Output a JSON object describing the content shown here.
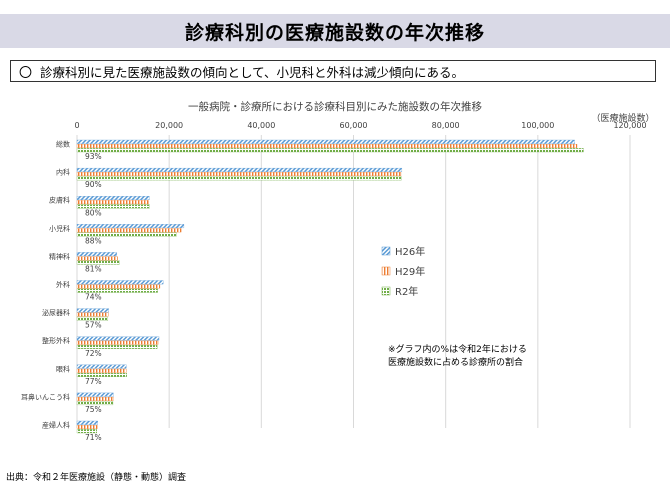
{
  "page": {
    "title": "診療科別の医療施設数の年次推移",
    "summary_bullet": "〇",
    "summary": "診療科別に見た医療施設数の傾向として、小児科と外科は減少傾向にある。",
    "source": "出典：令和２年医療施設（静態・動態）調査"
  },
  "chart_data": {
    "type": "bar",
    "orientation": "horizontal",
    "title": "一般病院・診療所における診療科目別にみた施設数の年次推移",
    "unit_label": "（医療施設数）",
    "xlim": [
      0,
      120000
    ],
    "xticks": [
      0,
      20000,
      40000,
      60000,
      80000,
      100000,
      120000
    ],
    "xtick_labels": [
      "0",
      "20,000",
      "40,000",
      "60,000",
      "80,000",
      "100,000",
      "120,000"
    ],
    "grid": "vertical",
    "legend_position": "right-middle",
    "categories": [
      "総数",
      "内科",
      "皮膚科",
      "小児科",
      "精神科",
      "外科",
      "泌尿器科",
      "整形外科",
      "眼科",
      "耳鼻いんこう科",
      "産婦人科"
    ],
    "percent_labels": [
      "93%",
      "90%",
      "80%",
      "88%",
      "81%",
      "74%",
      "57%",
      "72%",
      "77%",
      "75%",
      "71%"
    ],
    "series": [
      {
        "name": "H26年",
        "color": "#5b9bd5",
        "values": [
          108000,
          70500,
          15700,
          23200,
          8600,
          18700,
          6900,
          17800,
          10700,
          7900,
          4500
        ]
      },
      {
        "name": "H29年",
        "color": "#ed7d31",
        "values": [
          108500,
          70300,
          15500,
          22600,
          8800,
          18000,
          6800,
          17600,
          10700,
          7900,
          4400
        ]
      },
      {
        "name": "R2年",
        "color": "#70ad47",
        "values": [
          109900,
          70400,
          15800,
          21600,
          9200,
          17500,
          6700,
          17400,
          10800,
          7800,
          4300
        ]
      }
    ],
    "note": "※グラフ内の%は令和2年における\n医療施設数に占める診療所の割合"
  }
}
